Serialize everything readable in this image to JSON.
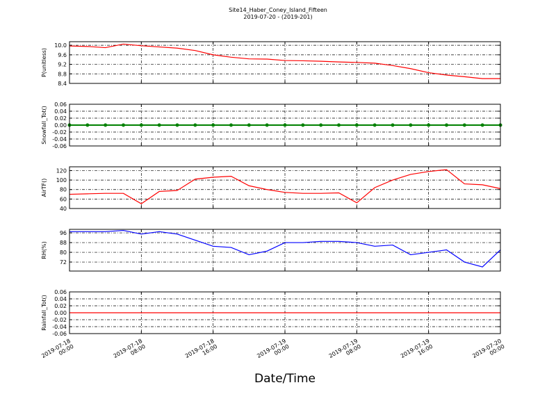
{
  "chart_data": [
    {
      "type": "line",
      "title": "Site14_Haber_Coney_Island_Fifteen",
      "subtitle": "2019-07-20 - (2019-201)",
      "ylabel": "P(unitless)",
      "color": "#ff0000",
      "x": [
        "2019-07-18 00:00",
        "2019-07-18 02:00",
        "2019-07-18 04:00",
        "2019-07-18 06:00",
        "2019-07-18 08:00",
        "2019-07-18 10:00",
        "2019-07-18 12:00",
        "2019-07-18 14:00",
        "2019-07-18 16:00",
        "2019-07-18 18:00",
        "2019-07-18 20:00",
        "2019-07-18 22:00",
        "2019-07-19 00:00",
        "2019-07-19 02:00",
        "2019-07-19 04:00",
        "2019-07-19 06:00",
        "2019-07-19 08:00",
        "2019-07-19 10:00",
        "2019-07-19 12:00",
        "2019-07-19 14:00",
        "2019-07-19 16:00",
        "2019-07-19 18:00",
        "2019-07-19 20:00",
        "2019-07-19 22:00",
        "2019-07-20 00:00"
      ],
      "values": [
        9.97,
        9.95,
        9.9,
        10.05,
        9.98,
        9.93,
        9.88,
        9.78,
        9.6,
        9.5,
        9.43,
        9.42,
        9.36,
        9.35,
        9.33,
        9.3,
        9.28,
        9.25,
        9.15,
        9.02,
        8.85,
        8.75,
        8.68,
        8.6,
        8.6
      ],
      "xlim": [
        "2019-07-18 00:00",
        "2019-07-20 00:00"
      ],
      "ylim": [
        8.4,
        10.15
      ],
      "yticks": [
        8.4,
        8.8,
        9.2,
        9.6,
        {
          "value": 10,
          "label": "10.0"
        }
      ],
      "grid": true
    },
    {
      "type": "line",
      "ylabel": "Snowfall_Tot()",
      "color": "#008000",
      "marker": true,
      "x": [
        "2019-07-18 00:00",
        "2019-07-18 02:00",
        "2019-07-18 04:00",
        "2019-07-18 06:00",
        "2019-07-18 08:00",
        "2019-07-18 10:00",
        "2019-07-18 12:00",
        "2019-07-18 14:00",
        "2019-07-18 16:00",
        "2019-07-18 18:00",
        "2019-07-18 20:00",
        "2019-07-18 22:00",
        "2019-07-19 00:00",
        "2019-07-19 02:00",
        "2019-07-19 04:00",
        "2019-07-19 06:00",
        "2019-07-19 08:00",
        "2019-07-19 10:00",
        "2019-07-19 12:00",
        "2019-07-19 14:00",
        "2019-07-19 16:00",
        "2019-07-19 18:00",
        "2019-07-19 20:00",
        "2019-07-19 22:00",
        "2019-07-20 00:00"
      ],
      "values": [
        0,
        0,
        0,
        0,
        0,
        0,
        0,
        0,
        0,
        0,
        0,
        0,
        0,
        0,
        0,
        0,
        0,
        0,
        0,
        0,
        0,
        0,
        0,
        0,
        0
      ],
      "xlim": [
        "2019-07-18 00:00",
        "2019-07-20 00:00"
      ],
      "ylim": [
        -0.06,
        0.06
      ],
      "yticks": [
        -0.06,
        -0.04,
        -0.02,
        {
          "value": 0,
          "label": "0.00"
        },
        0.02,
        0.04,
        0.06
      ],
      "grid": true
    },
    {
      "type": "line",
      "ylabel": "AirTF()",
      "color": "#ff0000",
      "x": [
        "2019-07-18 00:00",
        "2019-07-18 02:00",
        "2019-07-18 04:00",
        "2019-07-18 06:00",
        "2019-07-18 08:00",
        "2019-07-18 10:00",
        "2019-07-18 12:00",
        "2019-07-18 14:00",
        "2019-07-18 16:00",
        "2019-07-18 18:00",
        "2019-07-18 20:00",
        "2019-07-18 22:00",
        "2019-07-19 00:00",
        "2019-07-19 02:00",
        "2019-07-19 04:00",
        "2019-07-19 06:00",
        "2019-07-19 08:00",
        "2019-07-19 10:00",
        "2019-07-19 12:00",
        "2019-07-19 14:00",
        "2019-07-19 16:00",
        "2019-07-19 18:00",
        "2019-07-19 20:00",
        "2019-07-19 22:00",
        "2019-07-20 00:00"
      ],
      "values": [
        70,
        71,
        72,
        72,
        50,
        76,
        78,
        102,
        106,
        108,
        88,
        80,
        74,
        72,
        72,
        73,
        52,
        84,
        100,
        112,
        118,
        122,
        92,
        90,
        82
      ],
      "xlim": [
        "2019-07-18 00:00",
        "2019-07-20 00:00"
      ],
      "ylim": [
        40,
        128
      ],
      "yticks": [
        40,
        60,
        80,
        100,
        120
      ],
      "grid": true
    },
    {
      "type": "line",
      "ylabel": "RH(%)",
      "color": "#0000ff",
      "x": [
        "2019-07-18 00:00",
        "2019-07-18 02:00",
        "2019-07-18 04:00",
        "2019-07-18 06:00",
        "2019-07-18 08:00",
        "2019-07-18 10:00",
        "2019-07-18 12:00",
        "2019-07-18 14:00",
        "2019-07-18 16:00",
        "2019-07-18 18:00",
        "2019-07-18 20:00",
        "2019-07-18 22:00",
        "2019-07-19 00:00",
        "2019-07-19 02:00",
        "2019-07-19 04:00",
        "2019-07-19 06:00",
        "2019-07-19 08:00",
        "2019-07-19 10:00",
        "2019-07-19 12:00",
        "2019-07-19 14:00",
        "2019-07-19 16:00",
        "2019-07-19 18:00",
        "2019-07-19 20:00",
        "2019-07-19 22:00",
        "2019-07-20 00:00"
      ],
      "values": [
        97,
        97,
        97,
        98,
        95,
        97,
        95,
        90,
        85,
        84,
        78,
        81,
        88,
        88,
        89,
        89,
        88,
        85,
        86,
        78,
        80,
        82,
        72,
        68,
        82
      ],
      "xlim": [
        "2019-07-18 00:00",
        "2019-07-20 00:00"
      ],
      "ylim": [
        64.6,
        98.9
      ],
      "yticks": [
        72,
        80,
        88,
        96
      ],
      "grid": true
    },
    {
      "type": "line",
      "ylabel": "Rainfall_Tot()",
      "xlabel": "Date/Time",
      "color": "#ff0000",
      "x": [
        "2019-07-18 00:00",
        "2019-07-18 02:00",
        "2019-07-18 04:00",
        "2019-07-18 06:00",
        "2019-07-18 08:00",
        "2019-07-18 10:00",
        "2019-07-18 12:00",
        "2019-07-18 14:00",
        "2019-07-18 16:00",
        "2019-07-18 18:00",
        "2019-07-18 20:00",
        "2019-07-18 22:00",
        "2019-07-19 00:00",
        "2019-07-19 02:00",
        "2019-07-19 04:00",
        "2019-07-19 06:00",
        "2019-07-19 08:00",
        "2019-07-19 10:00",
        "2019-07-19 12:00",
        "2019-07-19 14:00",
        "2019-07-19 16:00",
        "2019-07-19 18:00",
        "2019-07-19 20:00",
        "2019-07-19 22:00",
        "2019-07-20 00:00"
      ],
      "values": [
        0,
        0,
        0,
        0,
        0,
        0,
        0,
        0,
        0,
        0,
        0,
        0,
        0,
        0,
        0,
        0,
        0,
        0,
        0,
        0,
        0,
        0,
        0,
        0,
        0
      ],
      "xlim": [
        "2019-07-18 00:00",
        "2019-07-20 00:00"
      ],
      "ylim": [
        -0.06,
        0.06
      ],
      "yticks": [
        -0.06,
        -0.04,
        -0.02,
        {
          "value": 0,
          "label": "0.00"
        },
        0.02,
        0.04,
        0.06
      ],
      "xticks": [
        "2019-07-18 00:00",
        "2019-07-18 08:00",
        "2019-07-18 16:00",
        "2019-07-19 00:00",
        "2019-07-19 08:00",
        "2019-07-19 16:00",
        "2019-07-20 00:00"
      ],
      "grid": true
    }
  ]
}
